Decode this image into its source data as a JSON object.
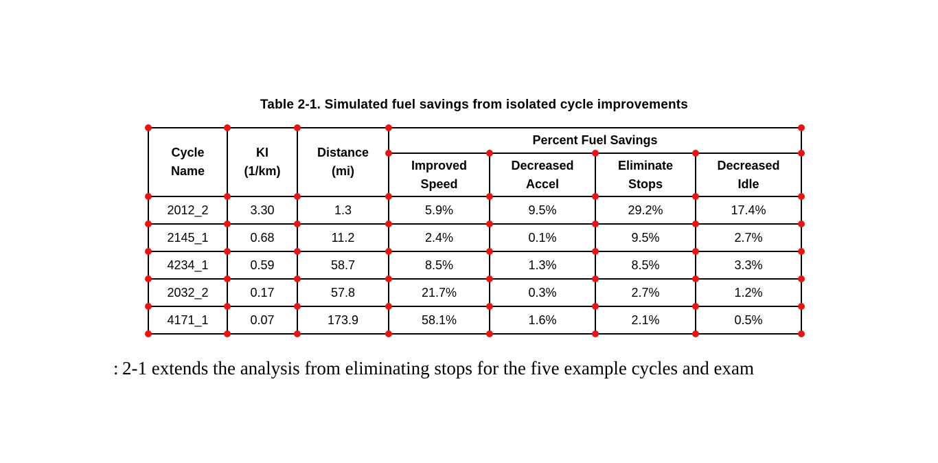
{
  "caption": "Table 2-1. Simulated fuel savings from isolated cycle improvements",
  "table": {
    "headers": {
      "cycle": [
        "Cycle",
        "Name"
      ],
      "ki": [
        "KI",
        "(1/km)"
      ],
      "distance": [
        "Distance",
        "(mi)"
      ],
      "span": "Percent Fuel Savings",
      "sub": [
        [
          "Improved",
          "Speed"
        ],
        [
          "Decreased",
          "Accel"
        ],
        [
          "Eliminate",
          "Stops"
        ],
        [
          "Decreased",
          "Idle"
        ]
      ]
    },
    "rows": [
      [
        "2012_2",
        "3.30",
        "1.3",
        "5.9%",
        "9.5%",
        "29.2%",
        "17.4%"
      ],
      [
        "2145_1",
        "0.68",
        "11.2",
        "2.4%",
        "0.1%",
        "9.5%",
        "2.7%"
      ],
      [
        "4234_1",
        "0.59",
        "58.7",
        "8.5%",
        "1.3%",
        "8.5%",
        "3.3%"
      ],
      [
        "2032_2",
        "0.17",
        "57.8",
        "21.7%",
        "0.3%",
        "2.7%",
        "1.2%"
      ],
      [
        "4171_1",
        "0.07",
        "173.9",
        "58.1%",
        "1.6%",
        "2.1%",
        "0.5%"
      ]
    ],
    "marker_color": "#ee1111",
    "border_color": "#000000"
  },
  "body": {
    "fragment": ":",
    "text": "2-1 extends the analysis from eliminating stops for the five example cycles and exam"
  }
}
